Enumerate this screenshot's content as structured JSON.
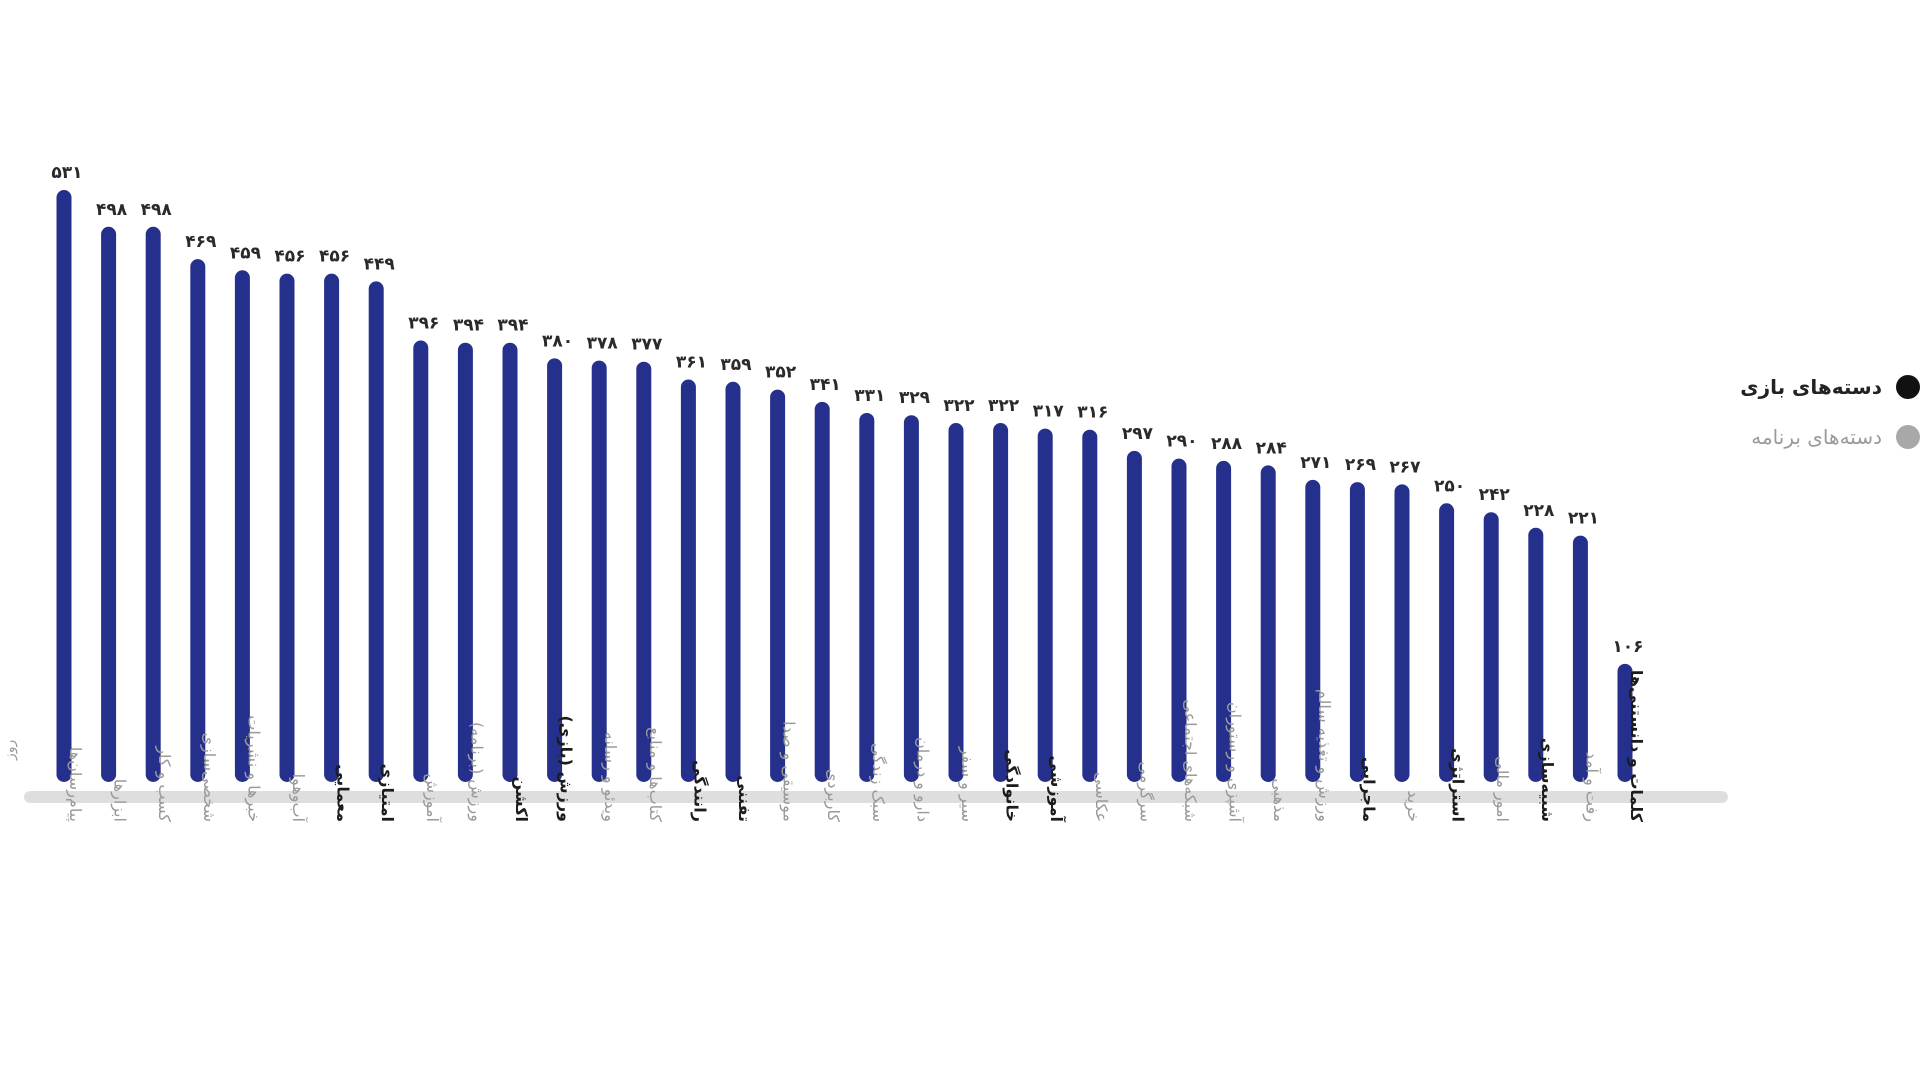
{
  "legend": {
    "items": [
      {
        "label": "دسته‌های بازی",
        "color": "#111111"
      },
      {
        "label": "دسته‌های برنامه",
        "color": "#a8a8a8"
      }
    ]
  },
  "colors": {
    "bar": "#25308c",
    "baseline": "#dedede"
  },
  "chart_data": {
    "type": "bar",
    "unit_label": "روز",
    "ylim": [
      0,
      560
    ],
    "grid": false,
    "legend_position": "right",
    "categories": [
      "پیام‌رسان‌ها",
      "ابزارها",
      "کسب و کار",
      "شخصی‌سازی",
      "خبرها و نشریات",
      "آب‌وهوا",
      "معمایی",
      "امتیازی",
      "آموزش",
      "ورزش (برنامه)",
      "اکشن",
      "ورزش (بازی)",
      "ویدئو و رسانه",
      "کتاب‌ها و منابع",
      "رانندگی",
      "تفننی",
      "موسیقی و صدا",
      "کاربردی",
      "سبک زندگی",
      "دارو و درمان",
      "سیر و سفر",
      "خانوادگی",
      "آموزشی",
      "عکاسی",
      "سرگرمی",
      "شبکه‌های اجتماعی",
      "آشپزی و رستوران",
      "مذهبی",
      "ورزش و تغذیه سالم",
      "ماجرایی",
      "خرید",
      "استراتژی",
      "امور مالی",
      "شبیه‌سازی",
      "رفت و آمد",
      "کلمات و دانستنی‌ها"
    ],
    "is_game": [
      false,
      false,
      false,
      false,
      false,
      false,
      true,
      true,
      false,
      false,
      true,
      true,
      false,
      false,
      true,
      true,
      false,
      false,
      false,
      false,
      false,
      true,
      true,
      false,
      false,
      false,
      false,
      false,
      false,
      true,
      false,
      true,
      false,
      true,
      false,
      true
    ],
    "values": [
      531,
      498,
      498,
      469,
      459,
      456,
      456,
      449,
      396,
      394,
      394,
      380,
      378,
      377,
      361,
      359,
      352,
      341,
      331,
      329,
      322,
      322,
      317,
      316,
      297,
      290,
      288,
      284,
      271,
      269,
      267,
      250,
      242,
      228,
      221,
      106
    ],
    "value_labels": [
      "۵۳۱",
      "۴۹۸",
      "۴۹۸",
      "۴۶۹",
      "۴۵۹",
      "۴۵۶",
      "۴۵۶",
      "۴۴۹",
      "۳۹۶",
      "۳۹۴",
      "۳۹۴",
      "۳۸۰",
      "۳۷۸",
      "۳۷۷",
      "۳۶۱",
      "۳۵۹",
      "۳۵۲",
      "۳۴۱",
      "۳۳۱",
      "۳۲۹",
      "۳۲۲",
      "۳۲۲",
      "۳۱۷",
      "۳۱۶",
      "۲۹۷",
      "۲۹۰",
      "۲۸۸",
      "۲۸۴",
      "۲۷۱",
      "۲۶۹",
      "۲۶۷",
      "۲۵۰",
      "۲۴۲",
      "۲۲۸",
      "۲۲۱",
      "۱۰۶"
    ]
  }
}
